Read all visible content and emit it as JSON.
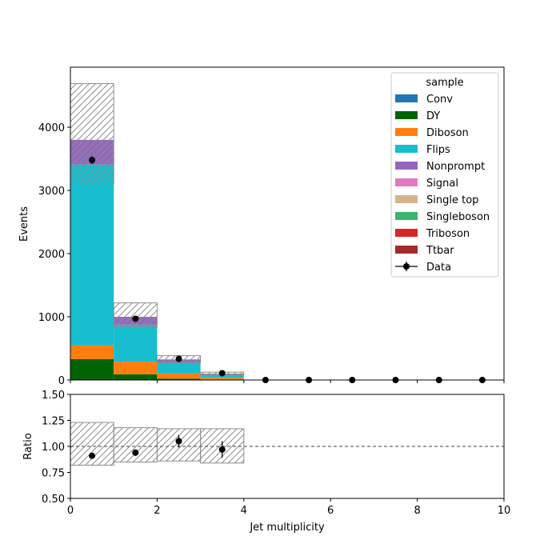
{
  "chart_data": {
    "type": "bar",
    "stacked": true,
    "xlabel": "Jet multiplicity",
    "ylabel_top": "Events",
    "ylabel_bottom": "Ratio",
    "xlim": [
      0,
      10
    ],
    "ylim_top": [
      0,
      4950
    ],
    "ylim_bottom": [
      0.5,
      1.5
    ],
    "x_ticks": [
      0,
      2,
      4,
      6,
      8,
      10
    ],
    "y_ticks_top": [
      0,
      1000,
      2000,
      3000,
      4000
    ],
    "y_ticks_bottom": [
      0.5,
      0.75,
      1.0,
      1.25,
      1.5
    ],
    "x_tick_labels": [
      "0",
      "2",
      "4",
      "6",
      "8",
      "10"
    ],
    "y_tick_labels_top": [
      "0",
      "1000",
      "2000",
      "3000",
      "4000"
    ],
    "y_tick_labels_bottom": [
      "0.50",
      "0.75",
      "1.00",
      "1.25",
      "1.50"
    ],
    "bin_edges": [
      0,
      1,
      2,
      3,
      4,
      5,
      6,
      7,
      8,
      9,
      10
    ],
    "legend": {
      "title": "sample",
      "placement": "top-right"
    },
    "series": [
      {
        "name": "Conv",
        "color": "#1f77b4",
        "values": [
          0,
          0,
          0,
          0,
          0,
          0,
          0,
          0,
          0,
          0
        ]
      },
      {
        "name": "DY",
        "color": "#006400",
        "values": [
          330,
          90,
          20,
          5,
          0,
          0,
          0,
          0,
          0,
          0
        ]
      },
      {
        "name": "Diboson",
        "color": "#ff7f0e",
        "values": [
          220,
          200,
          85,
          30,
          0,
          0,
          0,
          0,
          0,
          0
        ]
      },
      {
        "name": "Flips",
        "color": "#17becf",
        "values": [
          2860,
          585,
          180,
          42,
          0,
          0,
          0,
          0,
          0,
          0
        ]
      },
      {
        "name": "Nonprompt",
        "color": "#9467bd",
        "values": [
          390,
          125,
          40,
          16,
          0,
          0,
          0,
          0,
          0,
          0
        ]
      },
      {
        "name": "Signal",
        "color": "#e377c2",
        "values": [
          0,
          0,
          0,
          0,
          0,
          0,
          0,
          0,
          0,
          0
        ]
      },
      {
        "name": "Single top",
        "color": "#d2b48c",
        "values": [
          0,
          0,
          0,
          0,
          0,
          0,
          0,
          0,
          0,
          0
        ]
      },
      {
        "name": "Singleboson",
        "color": "#3cb371",
        "values": [
          0,
          0,
          0,
          8,
          0,
          0,
          0,
          0,
          0,
          0
        ]
      },
      {
        "name": "Triboson",
        "color": "#d62728",
        "values": [
          0,
          0,
          0,
          0,
          0,
          0,
          0,
          0,
          0,
          0
        ]
      },
      {
        "name": "Ttbar",
        "color": "#a52a2a",
        "values": [
          0,
          0,
          0,
          0,
          0,
          0,
          0,
          0,
          0,
          0
        ]
      }
    ],
    "uncertainty_band": {
      "lower": [
        3110,
        840,
        275,
        85,
        0,
        0,
        0,
        0,
        0,
        0
      ],
      "upper": [
        4690,
        1220,
        385,
        125,
        0,
        0,
        0,
        0,
        0,
        0
      ]
    },
    "data": {
      "name": "Data",
      "x": [
        0.5,
        1.5,
        2.5,
        3.5,
        4.5,
        5.5,
        6.5,
        7.5,
        8.5,
        9.5
      ],
      "y": [
        3480,
        970,
        335,
        108,
        0,
        0,
        0,
        0,
        0,
        0
      ],
      "yerr": [
        59,
        31,
        18,
        10,
        0,
        0,
        0,
        0,
        0,
        0
      ]
    },
    "ratio": {
      "x": [
        0.5,
        1.5,
        2.5,
        3.5
      ],
      "y": [
        0.91,
        0.94,
        1.05,
        0.97
      ],
      "yerr": [
        0.02,
        0.03,
        0.06,
        0.08
      ],
      "band_lower": [
        0.82,
        0.85,
        0.86,
        0.84
      ],
      "band_upper": [
        1.23,
        1.18,
        1.17,
        1.17
      ],
      "reference": 1.0
    }
  }
}
